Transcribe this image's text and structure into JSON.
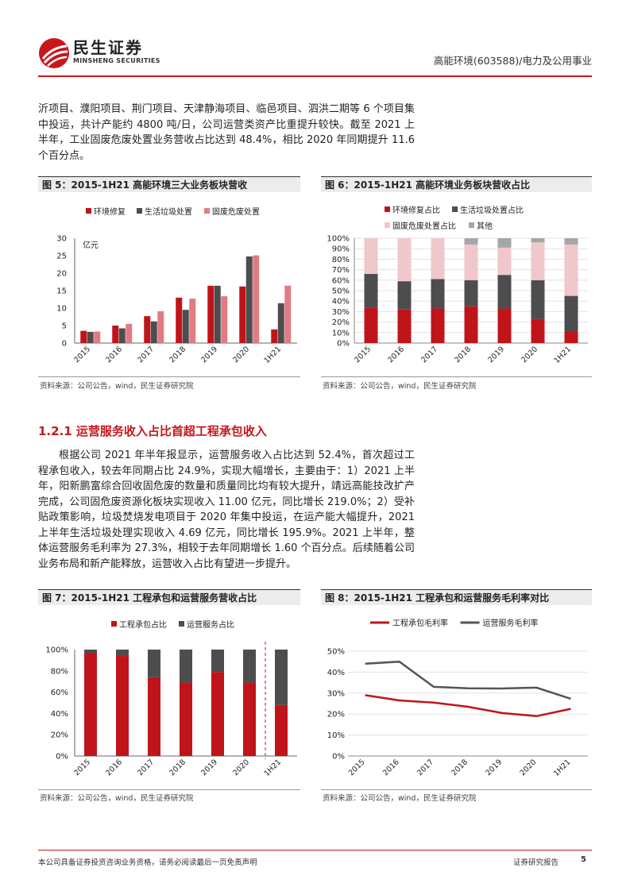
{
  "header": {
    "logo_cn": "民生证券",
    "logo_en": "MINSHENG SECURITIES",
    "right": "高能环境(603588)/电力及公用事业"
  },
  "paragraph1": "沂项目、濮阳项目、荆门项目、天津静海项目、临邑项目、泗洪二期等 6 个项目集中投运，共计产能约 4800 吨/日，公司运营类资产比重提升较快。截至 2021 上半年，工业固废危废处置业务营收占比达到 48.4%，相比 2020 年同期提升 11.6 个百分点。",
  "section_heading": "1.2.1 运营服务收入占比首超工程承包收入",
  "paragraph2": "根据公司 2021 年半年报显示，运营服务收入占比达到 52.4%，首次超过工程承包收入，较去年同期占比 24.9%，实现大幅增长，主要由于：1）2021 上半年，阳新鹏富综合回收固危废的数量和质量同比均有较大提升，靖远高能技改扩产完成，公司固危废资源化板块实现收入 11.00 亿元，同比增长 219.0%；2）受补贴政策影响，垃圾焚烧发电项目于 2020 年集中投运，在运产能大幅提升，2021 上半年生活垃圾处理实现收入 4.69 亿元，同比增长 195.9%。2021 上半年，整体运营服务毛利率为 27.3%，相较于去年同期增长 1.60 个百分点。后续随着公司业务布局和新产能释放，运营收入占比有望进一步提升。",
  "source_text": "资料来源：公司公告，wind，民生证券研究院",
  "footer": {
    "left": "本公司具备证券投资咨询业务资格，请务必阅读最后一页免责声明",
    "right": "证券研究报告",
    "page": "5"
  },
  "chart_data": [
    {
      "id": "fig5",
      "type": "bar",
      "title": "图 5：2015-1H21 高能环境三大业务板块营收",
      "unit_label": "亿元",
      "categories": [
        "2015",
        "2016",
        "2017",
        "2018",
        "2019",
        "2020",
        "1H21"
      ],
      "ylim": [
        0,
        30
      ],
      "yticks": [
        0,
        5,
        10,
        15,
        20,
        25,
        30
      ],
      "legend_position": "top",
      "series": [
        {
          "name": "环境修复",
          "color": "#c0141b",
          "values": [
            3.5,
            5.0,
            7.7,
            13.0,
            16.4,
            16.2,
            3.9
          ]
        },
        {
          "name": "生活垃圾处置",
          "color": "#4d4d4d",
          "values": [
            3.2,
            4.2,
            6.2,
            9.5,
            16.4,
            24.8,
            11.4
          ]
        },
        {
          "name": "固废危废处置",
          "color": "#e07b86",
          "values": [
            3.3,
            5.5,
            9.1,
            12.7,
            13.4,
            25.1,
            16.4
          ]
        }
      ]
    },
    {
      "id": "fig6",
      "type": "bar",
      "stacked": true,
      "title": "图 6：2015-1H21 高能环境业务板块营收占比",
      "categories": [
        "2015",
        "2016",
        "2017",
        "2018",
        "2019",
        "2020",
        "1H21"
      ],
      "ylim": [
        0,
        100
      ],
      "yticks": [
        "0%",
        "10%",
        "20%",
        "30%",
        "40%",
        "50%",
        "60%",
        "70%",
        "80%",
        "90%",
        "100%"
      ],
      "legend_position": "top",
      "series": [
        {
          "name": "环境修复占比",
          "color": "#c0141b",
          "values": [
            34,
            32,
            33,
            35,
            33,
            23,
            11
          ]
        },
        {
          "name": "生活垃圾处置占比",
          "color": "#4d4d4d",
          "values": [
            32,
            27,
            28,
            25,
            32,
            37,
            34
          ]
        },
        {
          "name": "固废危废处置占比",
          "color": "#f0c7cb",
          "values": [
            34,
            41,
            39,
            34,
            26,
            36,
            49
          ]
        },
        {
          "name": "其他",
          "color": "#a6a6a6",
          "values": [
            0,
            0,
            0,
            6,
            9,
            4,
            6
          ]
        }
      ]
    },
    {
      "id": "fig7",
      "type": "bar",
      "stacked": true,
      "title": "图 7：2015-1H21 工程承包和运营服务营收占比",
      "categories": [
        "2015",
        "2016",
        "2017",
        "2018",
        "2019",
        "2020",
        "1H21"
      ],
      "ylim": [
        0,
        100
      ],
      "yticks": [
        "0%",
        "20%",
        "40%",
        "60%",
        "80%",
        "100%"
      ],
      "legend_position": "top",
      "divider_after_index": 5,
      "series": [
        {
          "name": "工程承包占比",
          "color": "#c0141b",
          "values": [
            97,
            94,
            74,
            69,
            79,
            69,
            48
          ]
        },
        {
          "name": "运营服务占比",
          "color": "#4d4d4d",
          "values": [
            3,
            6,
            26,
            31,
            21,
            31,
            52
          ]
        }
      ]
    },
    {
      "id": "fig8",
      "type": "line",
      "title": "图 8：2015-1H21 工程承包和运营服务毛利率对比",
      "categories": [
        "2015",
        "2016",
        "2017",
        "2018",
        "2019",
        "2020",
        "1H21"
      ],
      "ylim": [
        0,
        50
      ],
      "yticks": [
        "0%",
        "10%",
        "20%",
        "30%",
        "40%",
        "50%"
      ],
      "legend_position": "top",
      "series": [
        {
          "name": "工程承包毛利率",
          "color": "#c0141b",
          "values": [
            29,
            26.5,
            25.5,
            23.5,
            20.5,
            19,
            22.5
          ]
        },
        {
          "name": "运营服务毛利率",
          "color": "#555555",
          "values": [
            44,
            45,
            33,
            32.3,
            32.2,
            32.6,
            27.3
          ]
        }
      ]
    }
  ]
}
